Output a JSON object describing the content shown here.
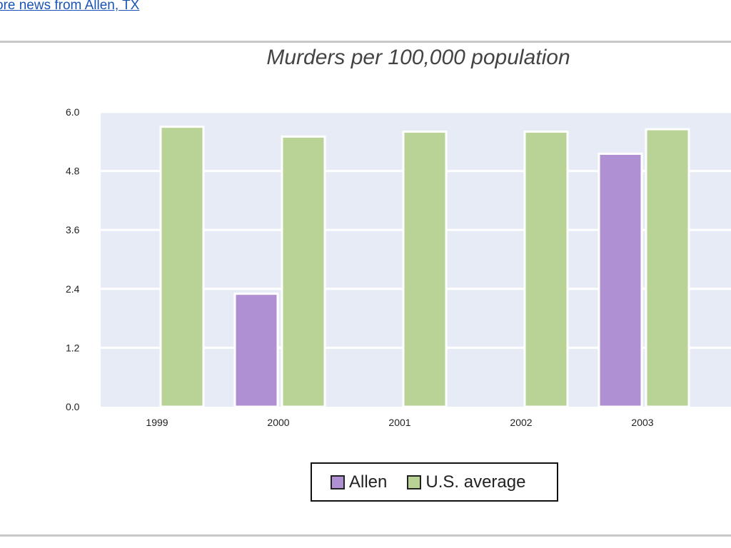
{
  "header": {
    "link_text": "ore news from Allen, TX"
  },
  "colors": {
    "plot_background": "#e6ebf6",
    "gridline": "#ffffff",
    "allen": "#af90d3",
    "us_average": "#b9d295",
    "bar_border": "#ffffff",
    "link": "#1a55b5"
  },
  "chart_data": {
    "type": "bar",
    "title": "Murders per 100,000 population",
    "xlabel": "",
    "ylabel": "",
    "categories": [
      "1999",
      "2000",
      "2001",
      "2002",
      "2003"
    ],
    "series": [
      {
        "name": "Allen",
        "values": [
          0,
          2.3,
          0,
          0,
          5.15
        ]
      },
      {
        "name": "U.S. average",
        "values": [
          5.7,
          5.5,
          5.6,
          5.6,
          5.65
        ]
      }
    ],
    "ylim": [
      0,
      6
    ],
    "yticks": [
      "0.0",
      "1.2",
      "2.4",
      "3.6",
      "4.8",
      "6.0"
    ],
    "grid": true,
    "legend_position": "bottom-center"
  }
}
